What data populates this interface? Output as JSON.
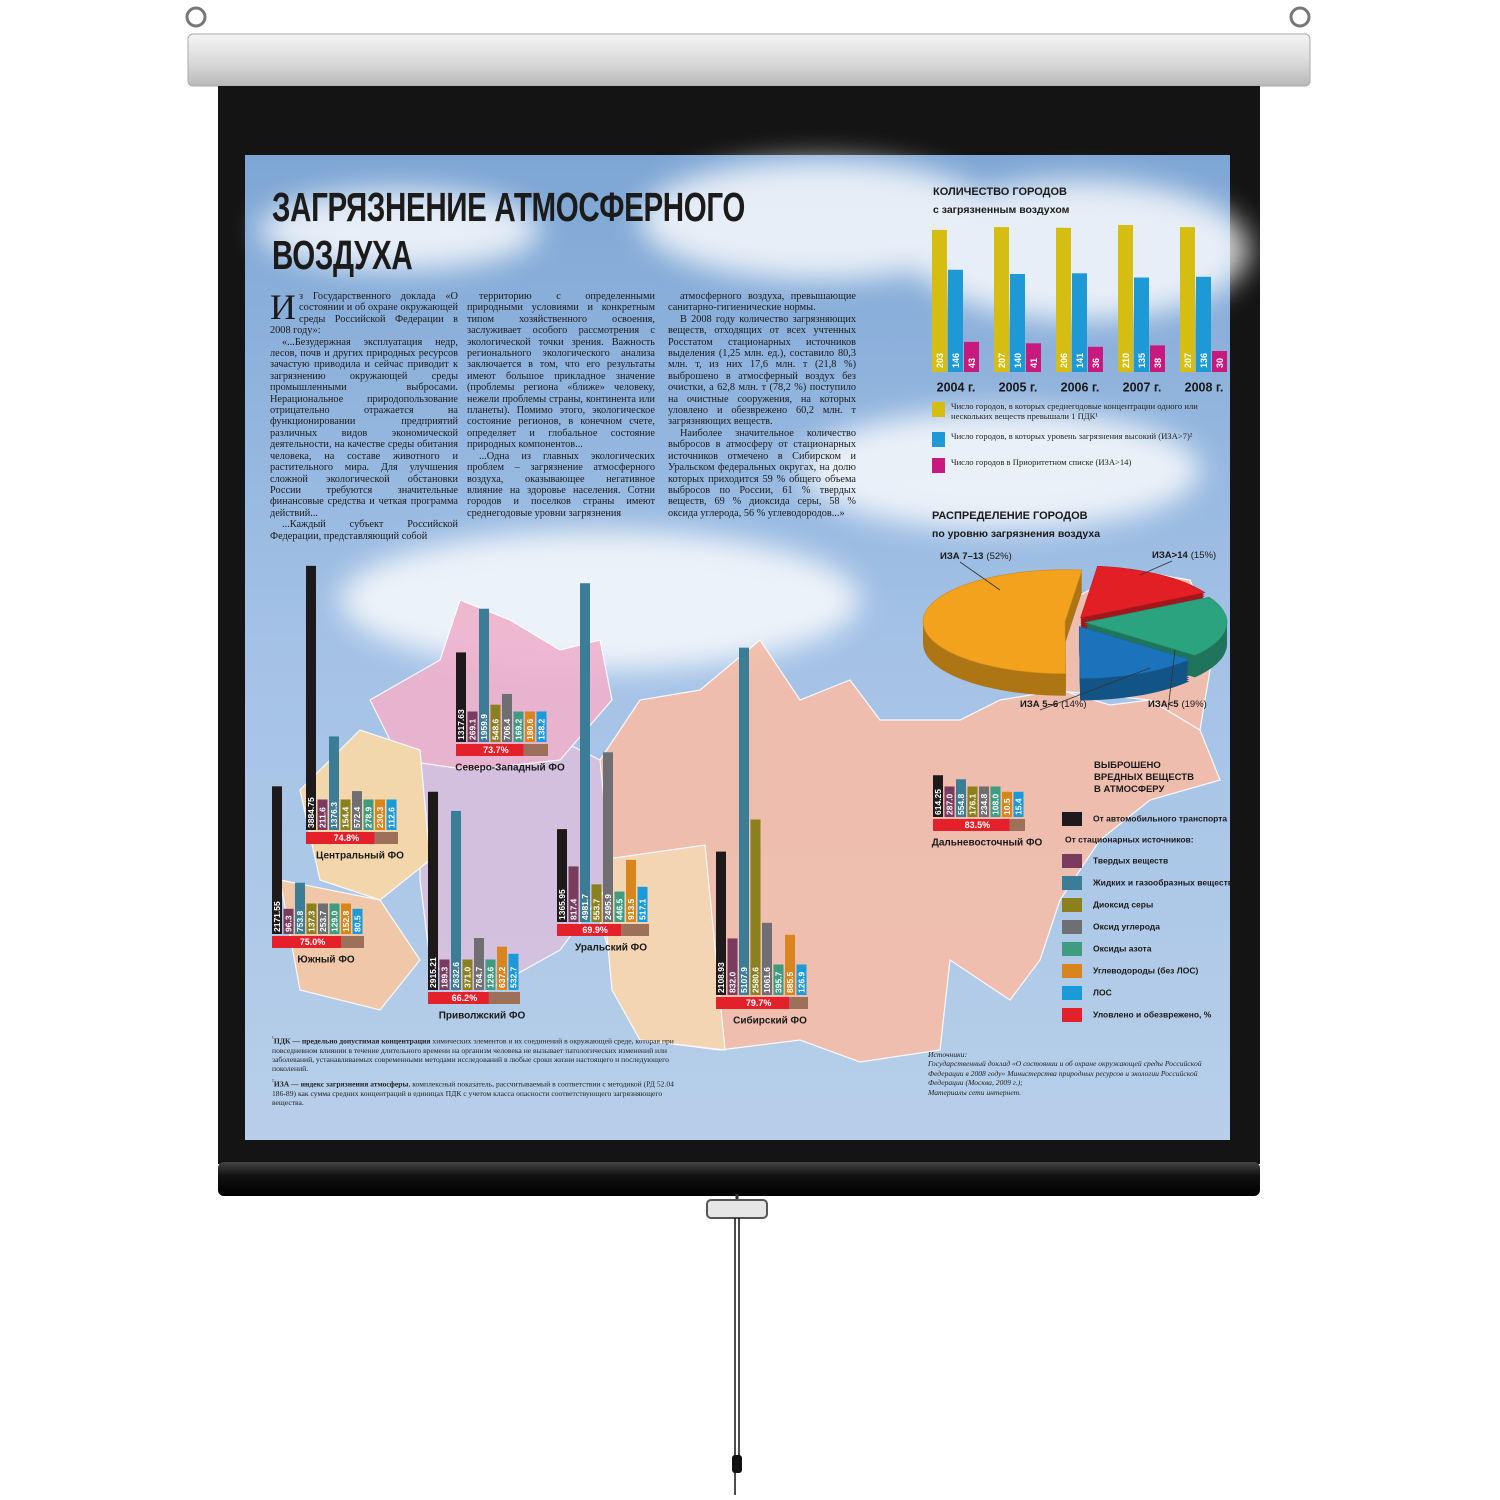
{
  "title": "ЗАГРЯЗНЕНИЕ АТМОСФЕРНОГО ВОЗДУХА",
  "article": {
    "columns": [
      [
        "Из Государственного доклада «О состоянии и об охране окружающей среды Российской Федерации в 2008 году»:",
        "«...Безудержная эксплуатация недр, лесов, почв и других природных ресурсов зачастую приводила и сейчас приводит к загрязнению окружающей среды промышленными выбросами. Нерациональное природопользование отрицательно отражается на функционировании предприятий различных видов экономической деятельности, на качестве среды обитания человека, на составе животного и растительного мира. Для улучшения сложной экологической обстановки России требуются значительные финансовые средства и четкая программа действий...",
        "...Каждый субъект Российской Федерации, представляющий собой"
      ],
      [
        "территорию с определенными природными условиями и конкретным типом хозяйственного освоения, заслуживает особого рассмотрения с экологической точки зрения. Важность регионального экологического анализа заключается в том, что его результаты имеют большое прикладное значение (проблемы региона «ближе» человеку, нежели проблемы страны, континента или планеты). Помимо этого, экологическое состояние регионов, в конечном счете, определяет и глобальное состояние природных компонентов...",
        "...Одна из главных экологических проблем – загрязнение атмосферного воздуха, оказывающее негативное влияние на здоровье населения. Сотни городов и поселков страны имеют среднегодовые уровни загрязнения"
      ],
      [
        "атмосферного воздуха, превышающие санитарно-гигиенические нормы.",
        "В 2008 году количество загрязняющих веществ, отходящих от всех учтенных Росстатом стационарных источников выделения (1,25 млн. ед.), составило 80,3 млн. т, из них 17,6 млн. т (21,8 %) выброшено в атмосферный воздух без очистки, а 62,8 млн. т (78,2 %) поступило на очистные сооружения, на которых уловлено и обезврежено 60,2 млн. т загрязняющих веществ.",
        "Наиболее значительное количество выбросов в атмосферу от стационарных источников отмечено в Сибирском и Уральском федеральных округах, на долю которых приходится 59 % общего объема выбросов по России, 61 % твердых веществ, 69 % диоксида серы, 58 % оксида углерода, 56 % углеводородов...»"
      ]
    ]
  },
  "chart_data": [
    {
      "type": "bar",
      "title": "КОЛИЧЕСТВО ГОРОДОВ",
      "subtitle": "с загрязненным воздухом",
      "categories": [
        "2004 г.",
        "2005 г.",
        "2006 г.",
        "2007 г.",
        "2008 г."
      ],
      "series": [
        {
          "name": "Число городов, в которых среднегодовые концентрации одного или нескольких веществ превышали 1 ПДК¹",
          "color": "#d5bd12",
          "values": [
            203,
            207,
            206,
            210,
            207
          ]
        },
        {
          "name": "Число городов, в которых уровень загрязнения высокий (ИЗА>7)²",
          "color": "#1d9ad6",
          "values": [
            146,
            140,
            141,
            135,
            136
          ]
        },
        {
          "name": "Число городов в Приоритетном списке (ИЗА>14)",
          "color": "#c8197e",
          "values": [
            43,
            41,
            36,
            38,
            30
          ]
        }
      ]
    },
    {
      "type": "pie",
      "title": "РАСПРЕДЕЛЕНИЕ ГОРОДОВ",
      "subtitle": "по уровню загрязнения воздуха",
      "categories": [
        "ИЗА>14",
        "ИЗА<5",
        "ИЗА 5–6",
        "ИЗА 7–13"
      ],
      "values": [
        15,
        19,
        14,
        52
      ],
      "value_labels": [
        "(15%)",
        "(19%)",
        "(14%)",
        "(52%)"
      ],
      "colors": [
        "#e31f26",
        "#2aa37e",
        "#1b74bb",
        "#f2a21c"
      ]
    },
    {
      "type": "map-bars",
      "title": "ВЫБРОШЕНО ВРЕДНЫХ ВЕЩЕСТВ В АТМОСФЕРУ",
      "legend_subheading": "От стационарных источников:",
      "series": [
        {
          "name": "От автомобильного транспорта",
          "color": "#1e1a1b"
        },
        {
          "name": "Твердых веществ",
          "color": "#7a3b5e"
        },
        {
          "name": "Жидких и газообразных веществ",
          "color": "#3b7c96"
        },
        {
          "name": "Диоксид серы",
          "color": "#8a801e"
        },
        {
          "name": "Оксид углерода",
          "color": "#6e6e73"
        },
        {
          "name": "Оксиды азота",
          "color": "#3f9c80"
        },
        {
          "name": "Углеводороды (без ЛОС)",
          "color": "#d9851d"
        },
        {
          "name": "ЛОС",
          "color": "#1a9ad6"
        }
      ],
      "captured": {
        "name": "Уловлено и обезврежено, %",
        "color": "#e4202a"
      },
      "districts": [
        {
          "name": "Центральный ФО",
          "values": [
            3884.75,
            211.6,
            1376.3,
            154.4,
            572.4,
            278.9,
            230.3,
            112.6
          ],
          "value_labels": [
            "3884.75",
            "211.6",
            "1376.3",
            "154.4",
            "572.4",
            "278.9",
            "230.3",
            "112.6"
          ],
          "captured": 74.8,
          "captured_label": "74.8%"
        },
        {
          "name": "Северо-Западный ФО",
          "values": [
            1317.63,
            269.1,
            1959.9,
            548.6,
            706.4,
            169.2,
            180.6,
            138.2
          ],
          "value_labels": [
            "1317.63",
            "269.1",
            "1959.9",
            "548.6",
            "706.4",
            "169.2",
            "180.6",
            "138.2"
          ],
          "captured": 73.7,
          "captured_label": "73.7%"
        },
        {
          "name": "Южный ФО",
          "values": [
            2171.55,
            96.3,
            753.8,
            137.3,
            253.7,
            129.0,
            152.8,
            80.5
          ],
          "value_labels": [
            "2171.55",
            "96.3",
            "753.8",
            "137.3",
            "253.7",
            "129.0",
            "152.8",
            "80.5"
          ],
          "captured": 75.0,
          "captured_label": "75.0%"
        },
        {
          "name": "Приволжский ФО",
          "values": [
            2915.21,
            189.3,
            2632.6,
            371.0,
            764.7,
            129.6,
            637.2,
            532.7
          ],
          "value_labels": [
            "2915.21",
            "189.3",
            "2632.6",
            "371.0",
            "764.7",
            "129.6",
            "637.2",
            "532.7"
          ],
          "captured": 66.2,
          "captured_label": "66.2%"
        },
        {
          "name": "Уральский ФО",
          "values": [
            1365.95,
            817.4,
            4981.7,
            553.7,
            2495.9,
            446.5,
            913.5,
            517.1
          ],
          "value_labels": [
            "1365.95",
            "817.4",
            "4981.7",
            "553.7",
            "2495.9",
            "446.5",
            "913.5",
            "517.1"
          ],
          "captured": 69.9,
          "captured_label": "69.9%"
        },
        {
          "name": "Сибирский ФО",
          "values": [
            2108.93,
            832.0,
            5107.9,
            2580.6,
            1061.6,
            395.7,
            885.5,
            126.9
          ],
          "value_labels": [
            "2108.93",
            "832.0",
            "5107.9",
            "2580.6",
            "1061.6",
            "395.7",
            "885.5",
            "126.9"
          ],
          "captured": 79.7,
          "captured_label": "79.7%"
        },
        {
          "name": "Дальневосточный ФО",
          "values": [
            614.25,
            287.0,
            554.8,
            176.1,
            234.8,
            108.0,
            10.5,
            15.4
          ],
          "value_labels": [
            "614.25",
            "287.0",
            "554.8",
            "176.1",
            "234.8",
            "108.0",
            "10.5",
            "15.4"
          ],
          "captured": 83.5,
          "captured_label": "83.5%"
        }
      ]
    }
  ],
  "footnotes": [
    {
      "marker": "¹",
      "term": "ПДК — предельно допустимая концентрация",
      "text": " химических элементов и их соединений в окружающей среде, которая при повседневном влиянии в течение длительного времени на организм человека не вызывает патологических изменений или заболеваний, устанавливаемых современными методами исследований в любые сроки жизни настоящего и последующего поколений."
    },
    {
      "marker": "²",
      "term": "ИЗА — индекс загрязнения атмосферы",
      "text": ", комплексный показатель, рассчитываемый в соответствии с методикой (РД 52.04 186-89) как сумма средних концентраций в единицах ПДК с учетом класса опасности соответствующего загрязняющего вещества."
    }
  ],
  "sources": {
    "heading": "Источники:",
    "items": [
      "Государственный доклад «О состоянии и об охране окружающей среды Российской Федерации в 2008 году» Министерства природных ресурсов и экологии Российской Федерации (Москва, 2009 г.);",
      "Материалы сети интернет."
    ]
  }
}
